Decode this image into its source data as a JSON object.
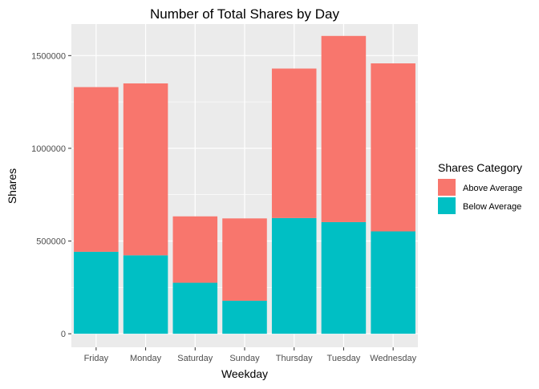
{
  "chart_data": {
    "type": "bar",
    "stacked": true,
    "title": "Number of Total Shares by Day",
    "xlabel": "Weekday",
    "ylabel": "Shares",
    "categories": [
      "Friday",
      "Monday",
      "Saturday",
      "Sunday",
      "Thursday",
      "Tuesday",
      "Wednesday"
    ],
    "series": [
      {
        "name": "Above Average",
        "color": "#F8766D",
        "values": [
          888000,
          927000,
          358000,
          444000,
          806000,
          1004000,
          906000
        ]
      },
      {
        "name": "Below Average",
        "color": "#00BFC4",
        "values": [
          442000,
          423000,
          275000,
          178000,
          624000,
          602000,
          552000
        ]
      }
    ],
    "ylim": [
      -73000,
      1670000
    ],
    "yticks": [
      0,
      500000,
      1000000,
      1500000
    ],
    "ytick_labels": [
      "0",
      "500000",
      "1000000",
      "1500000"
    ],
    "grid": true,
    "legend": {
      "title": "Shares Category",
      "position": "right"
    },
    "panel_background": "#EBEBEB",
    "grid_color": "#FFFFFF"
  }
}
